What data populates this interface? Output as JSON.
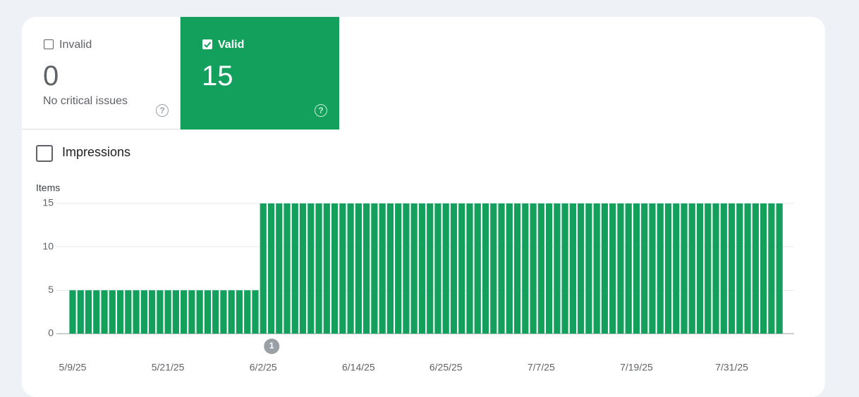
{
  "tiles": [
    {
      "label": "Invalid",
      "value": 0,
      "description": "No critical issues",
      "checked": false
    },
    {
      "label": "Valid",
      "value": 15,
      "checked": true
    }
  ],
  "impressions_label": "Impressions",
  "chart_data": {
    "type": "bar",
    "y_axis_label": "Items",
    "categories": [
      "5/9/25",
      null,
      null,
      null,
      null,
      null,
      null,
      null,
      null,
      null,
      null,
      null,
      "5/21/25",
      null,
      null,
      null,
      null,
      null,
      null,
      null,
      null,
      null,
      null,
      null,
      "6/2/25",
      null,
      null,
      null,
      null,
      null,
      null,
      null,
      null,
      null,
      null,
      null,
      "6/14/25",
      null,
      null,
      null,
      null,
      null,
      null,
      null,
      null,
      null,
      null,
      "6/25/25",
      null,
      null,
      null,
      null,
      null,
      null,
      null,
      null,
      null,
      null,
      null,
      "7/7/25",
      null,
      null,
      null,
      null,
      null,
      null,
      null,
      null,
      null,
      null,
      null,
      "7/19/25",
      null,
      null,
      null,
      null,
      null,
      null,
      null,
      null,
      null,
      null,
      null,
      "7/31/25",
      null,
      null,
      null,
      null,
      null,
      null
    ],
    "values": [
      5,
      5,
      5,
      5,
      5,
      5,
      5,
      5,
      5,
      5,
      5,
      5,
      5,
      5,
      5,
      5,
      5,
      5,
      5,
      5,
      5,
      5,
      5,
      5,
      15,
      15,
      15,
      15,
      15,
      15,
      15,
      15,
      15,
      15,
      15,
      15,
      15,
      15,
      15,
      15,
      15,
      15,
      15,
      15,
      15,
      15,
      15,
      15,
      15,
      15,
      15,
      15,
      15,
      15,
      15,
      15,
      15,
      15,
      15,
      15,
      15,
      15,
      15,
      15,
      15,
      15,
      15,
      15,
      15,
      15,
      15,
      15,
      15,
      15,
      15,
      15,
      15,
      15,
      15,
      15,
      15,
      15,
      15,
      15,
      15,
      15,
      15,
      15,
      15,
      15
    ],
    "color": "#12a05c",
    "ylim": [
      0,
      15
    ],
    "yticks": [
      0,
      5,
      10,
      15
    ],
    "grid": true,
    "annotations": [
      {
        "x": "6/2/25",
        "text": "1"
      }
    ]
  }
}
